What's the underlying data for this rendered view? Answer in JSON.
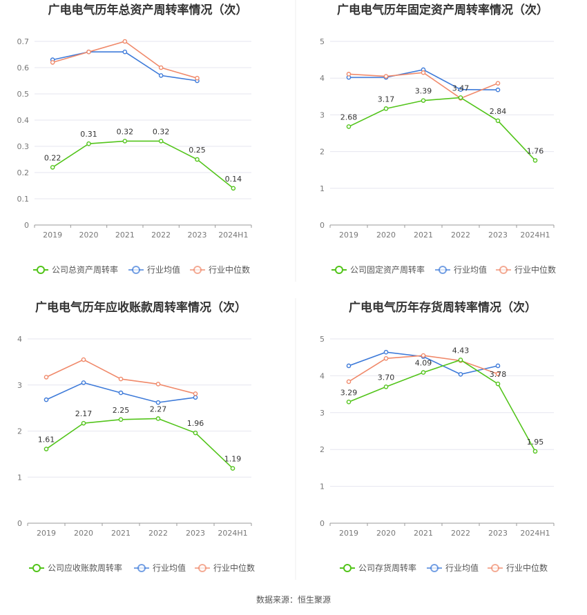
{
  "colors": {
    "company": "#52c41a",
    "avg": "#3d7ad9",
    "median": "#f0896a"
  },
  "source": "数据来源：恒生聚源",
  "chart_data": [
    {
      "type": "line",
      "title": "广电电气历年总资产周转率情况（次）",
      "categories": [
        "2019",
        "2020",
        "2021",
        "2022",
        "2023",
        "2024H1"
      ],
      "ylim": [
        0,
        0.7
      ],
      "yticks": [
        "0",
        "0.1",
        "0.2",
        "0.3",
        "0.4",
        "0.5",
        "0.6",
        "0.7"
      ],
      "grid": true,
      "legend": "bottom",
      "series": [
        {
          "name": "公司总资产周转率",
          "key": "company",
          "values": [
            0.22,
            0.31,
            0.32,
            0.32,
            0.25,
            0.14
          ],
          "labels": [
            "0.22",
            "0.31",
            "0.32",
            "0.32",
            "0.25",
            "0.14"
          ]
        },
        {
          "name": "行业均值",
          "key": "avg",
          "values": [
            0.63,
            0.66,
            0.66,
            0.57,
            0.55,
            null
          ]
        },
        {
          "name": "行业中位数",
          "key": "median",
          "values": [
            0.62,
            0.66,
            0.7,
            0.6,
            0.56,
            null
          ]
        }
      ]
    },
    {
      "type": "line",
      "title": "广电电气历年固定资产周转率情况（次）",
      "categories": [
        "2019",
        "2020",
        "2021",
        "2022",
        "2023",
        "2024H1"
      ],
      "ylim": [
        0,
        5
      ],
      "yticks": [
        "0",
        "1",
        "2",
        "3",
        "4",
        "5"
      ],
      "grid": true,
      "legend": "bottom",
      "series": [
        {
          "name": "公司固定资产周转率",
          "key": "company",
          "values": [
            2.68,
            3.17,
            3.39,
            3.47,
            2.84,
            1.76
          ],
          "labels": [
            "2.68",
            "3.17",
            "3.39",
            "3.47",
            "2.84",
            "1.76"
          ]
        },
        {
          "name": "行业均值",
          "key": "avg",
          "values": [
            4.02,
            4.02,
            4.23,
            3.69,
            3.68,
            null
          ]
        },
        {
          "name": "行业中位数",
          "key": "median",
          "values": [
            4.11,
            4.05,
            4.15,
            3.45,
            3.86,
            null
          ]
        }
      ]
    },
    {
      "type": "line",
      "title": "广电电气历年应收账款周转率情况（次）",
      "categories": [
        "2019",
        "2020",
        "2021",
        "2022",
        "2023",
        "2024H1"
      ],
      "ylim": [
        0,
        4
      ],
      "yticks": [
        "0",
        "1",
        "2",
        "3",
        "4"
      ],
      "grid": true,
      "legend": "bottom",
      "series": [
        {
          "name": "公司应收账款周转率",
          "key": "company",
          "values": [
            1.61,
            2.17,
            2.25,
            2.27,
            1.96,
            1.19
          ],
          "labels": [
            "1.61",
            "2.17",
            "2.25",
            "2.27",
            "1.96",
            "1.19"
          ]
        },
        {
          "name": "行业均值",
          "key": "avg",
          "values": [
            2.68,
            3.05,
            2.83,
            2.62,
            2.73,
            null
          ]
        },
        {
          "name": "行业中位数",
          "key": "median",
          "values": [
            3.17,
            3.55,
            3.13,
            3.02,
            2.81,
            null
          ]
        }
      ]
    },
    {
      "type": "line",
      "title": "广电电气历年存货周转率情况（次）",
      "categories": [
        "2019",
        "2020",
        "2021",
        "2022",
        "2023",
        "2024H1"
      ],
      "ylim": [
        0,
        5
      ],
      "yticks": [
        "0",
        "1",
        "2",
        "3",
        "4",
        "5"
      ],
      "grid": true,
      "legend": "bottom",
      "series": [
        {
          "name": "公司存货周转率",
          "key": "company",
          "values": [
            3.29,
            3.7,
            4.09,
            4.43,
            3.78,
            1.95
          ],
          "labels": [
            "3.29",
            "3.70",
            "4.09",
            "4.43",
            "3.78",
            "1.95"
          ]
        },
        {
          "name": "行业均值",
          "key": "avg",
          "values": [
            4.27,
            4.64,
            4.52,
            4.04,
            4.27,
            null
          ]
        },
        {
          "name": "行业中位数",
          "key": "median",
          "values": [
            3.84,
            4.47,
            4.55,
            4.41,
            4.05,
            null
          ]
        }
      ]
    }
  ]
}
